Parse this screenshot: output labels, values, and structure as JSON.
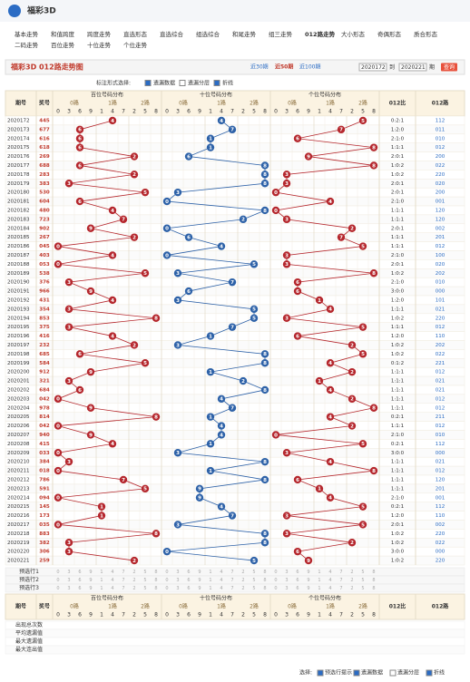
{
  "header": {
    "logo_text": "福彩3D"
  },
  "nav": [
    "基本走势",
    "和值跨度",
    "跨度走势",
    "直选形态",
    "直选综合",
    "组选综合",
    "和尾走势",
    "组三走势",
    "012路走势",
    "大小形态",
    "奇偶形态",
    "质合形态",
    "二码走势",
    "百位走势",
    "十位走势",
    "个位走势"
  ],
  "panel": {
    "title": "福彩3D 012路走势图",
    "periods": [
      "近30期",
      "近50期",
      "近100期"
    ],
    "from": "2020172",
    "sep": "到",
    "to": "2020221",
    "unit": "期",
    "button": "查询"
  },
  "options": {
    "label": "标注形式选择:",
    "items": [
      "遗漏数据",
      "遗漏分层",
      "折线"
    ]
  },
  "table": {
    "headers": {
      "issue": "期号",
      "number": "奖号",
      "groups": [
        "百位号码分布",
        "十位号码分布",
        "个位号码分布"
      ],
      "ratio": "012比",
      "path": "012路"
    },
    "paths": [
      "0路",
      "1路",
      "2路"
    ],
    "digit_order": [
      0,
      3,
      6,
      9,
      1,
      4,
      7,
      2,
      5,
      8
    ],
    "rows": [
      {
        "issue": "2020172",
        "number": "445",
        "digits": [
          4,
          4,
          5
        ],
        "ratio": "0:2:1",
        "path": "112"
      },
      {
        "issue": "2020173",
        "number": "677",
        "digits": [
          6,
          7,
          7
        ],
        "ratio": "1:2:0",
        "path": "011"
      },
      {
        "issue": "2020174",
        "number": "616",
        "digits": [
          6,
          1,
          6
        ],
        "ratio": "2:1:0",
        "path": "010"
      },
      {
        "issue": "2020175",
        "number": "618",
        "digits": [
          6,
          1,
          8
        ],
        "ratio": "1:1:1",
        "path": "012"
      },
      {
        "issue": "2020176",
        "number": "269",
        "digits": [
          2,
          6,
          9
        ],
        "ratio": "2:0:1",
        "path": "200"
      },
      {
        "issue": "2020177",
        "number": "688",
        "digits": [
          6,
          8,
          8
        ],
        "ratio": "1:0:2",
        "path": "022"
      },
      {
        "issue": "2020178",
        "number": "283",
        "digits": [
          2,
          8,
          3
        ],
        "ratio": "1:0:2",
        "path": "220"
      },
      {
        "issue": "2020179",
        "number": "383",
        "digits": [
          3,
          8,
          3
        ],
        "ratio": "2:0:1",
        "path": "020"
      },
      {
        "issue": "2020180",
        "number": "530",
        "digits": [
          5,
          3,
          0
        ],
        "ratio": "2:0:1",
        "path": "200"
      },
      {
        "issue": "2020181",
        "number": "604",
        "digits": [
          6,
          0,
          4
        ],
        "ratio": "2:1:0",
        "path": "001"
      },
      {
        "issue": "2020182",
        "number": "480",
        "digits": [
          4,
          8,
          0
        ],
        "ratio": "1:1:1",
        "path": "120"
      },
      {
        "issue": "2020183",
        "number": "723",
        "digits": [
          7,
          2,
          3
        ],
        "ratio": "1:1:1",
        "path": "120"
      },
      {
        "issue": "2020184",
        "number": "902",
        "digits": [
          9,
          0,
          2
        ],
        "ratio": "2:0:1",
        "path": "002"
      },
      {
        "issue": "2020185",
        "number": "267",
        "digits": [
          2,
          6,
          7
        ],
        "ratio": "1:1:1",
        "path": "201"
      },
      {
        "issue": "2020186",
        "number": "045",
        "digits": [
          0,
          4,
          5
        ],
        "ratio": "1:1:1",
        "path": "012"
      },
      {
        "issue": "2020187",
        "number": "403",
        "digits": [
          4,
          0,
          3
        ],
        "ratio": "2:1:0",
        "path": "100"
      },
      {
        "issue": "2020188",
        "number": "053",
        "digits": [
          0,
          5,
          3
        ],
        "ratio": "2:0:1",
        "path": "020"
      },
      {
        "issue": "2020189",
        "number": "538",
        "digits": [
          5,
          3,
          8
        ],
        "ratio": "1:0:2",
        "path": "202"
      },
      {
        "issue": "2020190",
        "number": "376",
        "digits": [
          3,
          7,
          6
        ],
        "ratio": "2:1:0",
        "path": "010"
      },
      {
        "issue": "2020191",
        "number": "966",
        "digits": [
          9,
          6,
          6
        ],
        "ratio": "3:0:0",
        "path": "000"
      },
      {
        "issue": "2020192",
        "number": "431",
        "digits": [
          4,
          3,
          1
        ],
        "ratio": "1:2:0",
        "path": "101"
      },
      {
        "issue": "2020193",
        "number": "354",
        "digits": [
          3,
          5,
          4
        ],
        "ratio": "1:1:1",
        "path": "021"
      },
      {
        "issue": "2020194",
        "number": "853",
        "digits": [
          8,
          5,
          3
        ],
        "ratio": "1:0:2",
        "path": "220"
      },
      {
        "issue": "2020195",
        "number": "375",
        "digits": [
          3,
          7,
          5
        ],
        "ratio": "1:1:1",
        "path": "012"
      },
      {
        "issue": "2020196",
        "number": "416",
        "digits": [
          4,
          1,
          6
        ],
        "ratio": "1:2:0",
        "path": "110"
      },
      {
        "issue": "2020197",
        "number": "232",
        "digits": [
          2,
          3,
          2
        ],
        "ratio": "1:0:2",
        "path": "202"
      },
      {
        "issue": "2020198",
        "number": "685",
        "digits": [
          6,
          8,
          5
        ],
        "ratio": "1:0:2",
        "path": "022"
      },
      {
        "issue": "2020199",
        "number": "584",
        "digits": [
          5,
          8,
          4
        ],
        "ratio": "0:1:2",
        "path": "221"
      },
      {
        "issue": "2020200",
        "number": "912",
        "digits": [
          9,
          1,
          2
        ],
        "ratio": "1:1:1",
        "path": "012"
      },
      {
        "issue": "2020201",
        "number": "321",
        "digits": [
          3,
          2,
          1
        ],
        "ratio": "1:1:1",
        "path": "021"
      },
      {
        "issue": "2020202",
        "number": "684",
        "digits": [
          6,
          8,
          4
        ],
        "ratio": "1:1:1",
        "path": "021"
      },
      {
        "issue": "2020203",
        "number": "042",
        "digits": [
          0,
          4,
          2
        ],
        "ratio": "1:1:1",
        "path": "012"
      },
      {
        "issue": "2020204",
        "number": "978",
        "digits": [
          9,
          7,
          8
        ],
        "ratio": "1:1:1",
        "path": "012"
      },
      {
        "issue": "2020205",
        "number": "814",
        "digits": [
          8,
          1,
          4
        ],
        "ratio": "0:2:1",
        "path": "211"
      },
      {
        "issue": "2020206",
        "number": "042",
        "digits": [
          0,
          4,
          2
        ],
        "ratio": "1:1:1",
        "path": "012"
      },
      {
        "issue": "2020207",
        "number": "940",
        "digits": [
          9,
          4,
          0
        ],
        "ratio": "2:1:0",
        "path": "010"
      },
      {
        "issue": "2020208",
        "number": "415",
        "digits": [
          4,
          1,
          5
        ],
        "ratio": "0:2:1",
        "path": "112"
      },
      {
        "issue": "2020209",
        "number": "033",
        "digits": [
          0,
          3,
          3
        ],
        "ratio": "3:0:0",
        "path": "000"
      },
      {
        "issue": "2020210",
        "number": "384",
        "digits": [
          3,
          8,
          4
        ],
        "ratio": "1:1:1",
        "path": "021"
      },
      {
        "issue": "2020211",
        "number": "018",
        "digits": [
          0,
          1,
          8
        ],
        "ratio": "1:1:1",
        "path": "012"
      },
      {
        "issue": "2020212",
        "number": "786",
        "digits": [
          7,
          8,
          6
        ],
        "ratio": "1:1:1",
        "path": "120"
      },
      {
        "issue": "2020213",
        "number": "591",
        "digits": [
          5,
          9,
          1
        ],
        "ratio": "1:1:1",
        "path": "201"
      },
      {
        "issue": "2020214",
        "number": "094",
        "digits": [
          0,
          9,
          4
        ],
        "ratio": "2:1:0",
        "path": "001"
      },
      {
        "issue": "2020215",
        "number": "145",
        "digits": [
          1,
          4,
          5
        ],
        "ratio": "0:2:1",
        "path": "112"
      },
      {
        "issue": "2020216",
        "number": "173",
        "digits": [
          1,
          7,
          3
        ],
        "ratio": "1:2:0",
        "path": "110"
      },
      {
        "issue": "2020217",
        "number": "035",
        "digits": [
          0,
          3,
          5
        ],
        "ratio": "2:0:1",
        "path": "002"
      },
      {
        "issue": "2020218",
        "number": "883",
        "digits": [
          8,
          8,
          3
        ],
        "ratio": "1:0:2",
        "path": "220"
      },
      {
        "issue": "2020219",
        "number": "382",
        "digits": [
          3,
          8,
          2
        ],
        "ratio": "1:0:2",
        "path": "022"
      },
      {
        "issue": "2020220",
        "number": "306",
        "digits": [
          3,
          0,
          6
        ],
        "ratio": "3:0:0",
        "path": "000"
      },
      {
        "issue": "2020221",
        "number": "259",
        "digits": [
          2,
          5,
          9
        ],
        "ratio": "1:0:2",
        "path": "220"
      }
    ],
    "preselect": [
      "预选行1",
      "预选行2",
      "预选行3"
    ],
    "stats": [
      "出现总次数",
      "平均遗漏值",
      "最大遗漏值",
      "最大连出值"
    ]
  },
  "footer": {
    "label": "选择:",
    "items": [
      "预选行提示",
      "遗漏数据",
      "遗漏分层",
      "折线"
    ]
  }
}
